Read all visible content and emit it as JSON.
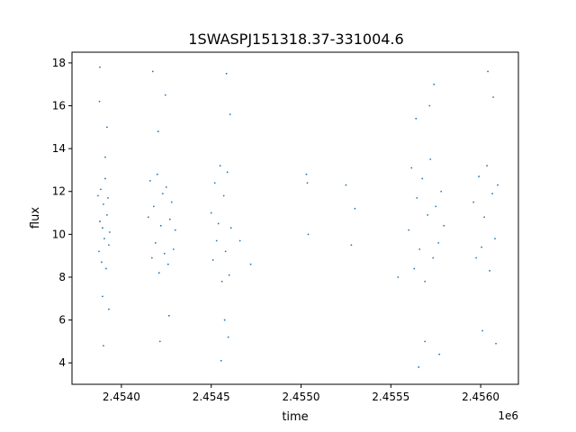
{
  "chart_data": {
    "type": "scatter",
    "title": "1SWASPJ151318.37-331004.6",
    "xlabel": "time",
    "ylabel": "flux",
    "x_offset_label": "1e6",
    "xlim": [
      2453725,
      2456210
    ],
    "ylim": [
      3.0,
      18.5
    ],
    "xticks": [
      2454000,
      2454500,
      2455000,
      2455500,
      2456000
    ],
    "xtick_labels": [
      "2.4540",
      "2.4545",
      "2.4550",
      "2.4555",
      "2.4560"
    ],
    "yticks": [
      4,
      6,
      8,
      10,
      12,
      14,
      16,
      18
    ],
    "ytick_labels": [
      "4",
      "6",
      "8",
      "10",
      "12",
      "14",
      "16",
      "18"
    ],
    "grid": false,
    "marker_color": "#1f77b4",
    "series": [
      {
        "x": [
          2453870,
          2453875,
          2453880,
          2453885,
          2453890,
          2453895,
          2453900,
          2453905,
          2453910,
          2453915,
          2453920,
          2453925,
          2453930,
          2453935,
          2453880,
          2453900,
          2453920,
          2453895,
          2453910,
          2453878,
          2453930,
          2454150,
          2454160,
          2454170,
          2454180,
          2454190,
          2454200,
          2454210,
          2454220,
          2454230,
          2454240,
          2454250,
          2454260,
          2454270,
          2454280,
          2454290,
          2454300,
          2454175,
          2454215,
          2454245,
          2454205,
          2454265,
          2454500,
          2454510,
          2454520,
          2454530,
          2454540,
          2454550,
          2454560,
          2454570,
          2454580,
          2454590,
          2454600,
          2454610,
          2454555,
          2454585,
          2454605,
          2454575,
          2454595,
          2454660,
          2454720,
          2455030,
          2455035,
          2455040,
          2455250,
          2455280,
          2455300,
          2455540,
          2455600,
          2455615,
          2455630,
          2455645,
          2455660,
          2455675,
          2455690,
          2455705,
          2455720,
          2455735,
          2455750,
          2455765,
          2455780,
          2455795,
          2455640,
          2455690,
          2455740,
          2455655,
          2455715,
          2455770,
          2455960,
          2455975,
          2455990,
          2456005,
          2456020,
          2456035,
          2456050,
          2456065,
          2456080,
          2456095,
          2456040,
          2456070,
          2456010,
          2456085
        ],
        "y": [
          11.8,
          9.2,
          10.6,
          12.1,
          8.7,
          10.3,
          11.4,
          9.8,
          12.6,
          8.4,
          10.9,
          11.7,
          9.5,
          10.1,
          17.8,
          4.8,
          15.0,
          7.1,
          13.6,
          16.2,
          6.5,
          10.8,
          12.5,
          8.9,
          11.3,
          9.6,
          12.8,
          8.2,
          10.4,
          11.9,
          9.1,
          12.2,
          8.6,
          10.7,
          11.5,
          9.3,
          10.2,
          17.6,
          5.0,
          16.5,
          14.8,
          6.2,
          11.0,
          8.8,
          12.4,
          9.7,
          10.5,
          13.2,
          7.8,
          11.8,
          9.2,
          12.9,
          8.1,
          10.3,
          4.1,
          17.5,
          15.6,
          6.0,
          5.2,
          9.7,
          8.6,
          12.8,
          12.4,
          10.0,
          12.3,
          9.5,
          11.2,
          8.0,
          10.2,
          13.1,
          8.4,
          11.7,
          9.3,
          12.6,
          7.8,
          10.9,
          13.5,
          8.9,
          11.3,
          9.6,
          12.0,
          10.4,
          15.4,
          5.0,
          17.0,
          3.8,
          16.0,
          4.4,
          11.5,
          8.9,
          12.7,
          9.4,
          10.8,
          13.2,
          8.3,
          11.9,
          9.8,
          12.3,
          17.6,
          16.4,
          5.5,
          4.9
        ]
      }
    ]
  }
}
